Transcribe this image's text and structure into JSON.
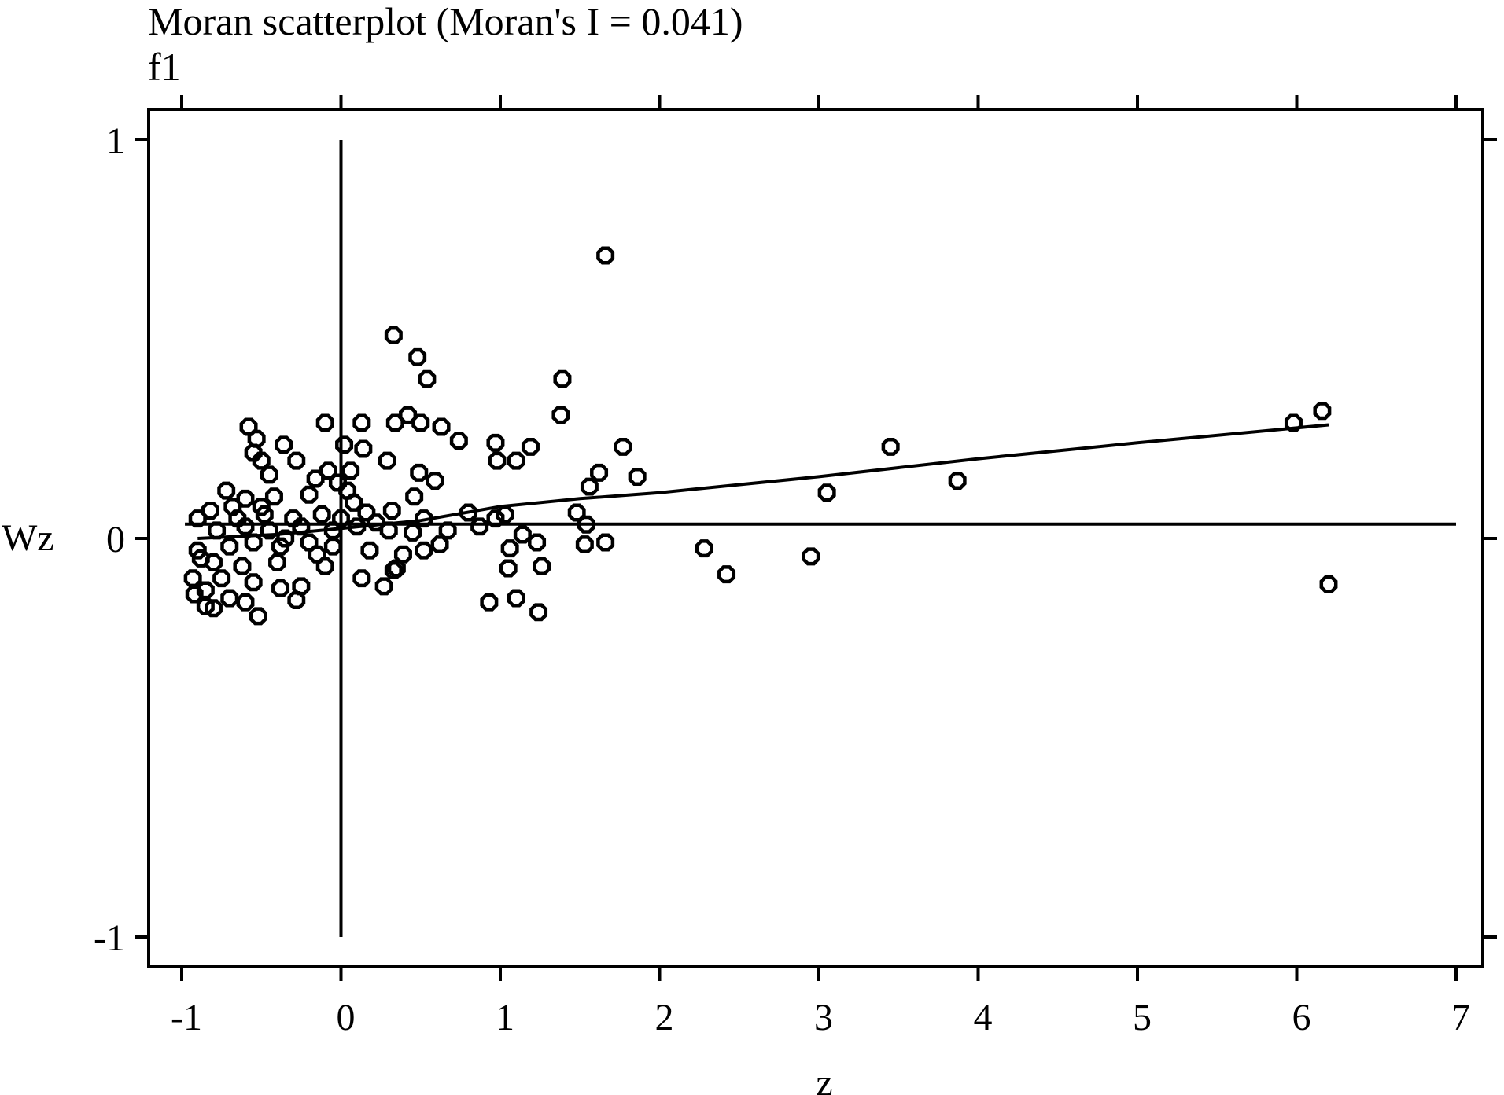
{
  "chart_data": {
    "type": "scatter",
    "title": "Moran scatterplot (Moran's I = 0.041)",
    "subtitle": "f1",
    "xlabel": "z",
    "ylabel": "Wz",
    "xlim": [
      -1,
      7
    ],
    "ylim": [
      -1,
      1
    ],
    "xticks": [
      -1,
      0,
      1,
      2,
      3,
      4,
      5,
      6,
      7
    ],
    "yticks": [
      -1,
      0,
      1
    ],
    "xtick_labels": [
      "-1",
      "0",
      "1",
      "2",
      "3",
      "4",
      "5",
      "6",
      "7"
    ],
    "ytick_labels": [
      "-1",
      "0",
      "1"
    ],
    "reference_lines": {
      "vertical_at_x": 0,
      "horizontal_at_y": 0.036
    },
    "smooth_line": [
      [
        -0.9,
        0.0
      ],
      [
        -0.4,
        0.01
      ],
      [
        0.0,
        0.025
      ],
      [
        0.5,
        0.045
      ],
      [
        1.0,
        0.08
      ],
      [
        1.5,
        0.1
      ],
      [
        2.0,
        0.115
      ],
      [
        3.0,
        0.155
      ],
      [
        4.0,
        0.2
      ],
      [
        5.0,
        0.24
      ],
      [
        6.2,
        0.285
      ]
    ],
    "points": [
      [
        1.66,
        0.71
      ],
      [
        0.33,
        0.51
      ],
      [
        0.48,
        0.455
      ],
      [
        0.54,
        0.4
      ],
      [
        1.39,
        0.4
      ],
      [
        -0.58,
        0.28
      ],
      [
        -0.1,
        0.29
      ],
      [
        0.13,
        0.29
      ],
      [
        0.34,
        0.29
      ],
      [
        0.42,
        0.31
      ],
      [
        0.5,
        0.29
      ],
      [
        0.63,
        0.28
      ],
      [
        1.38,
        0.31
      ],
      [
        -0.53,
        0.25
      ],
      [
        -0.36,
        0.235
      ],
      [
        0.02,
        0.235
      ],
      [
        0.74,
        0.245
      ],
      [
        0.97,
        0.24
      ],
      [
        1.19,
        0.23
      ],
      [
        1.77,
        0.23
      ],
      [
        -0.55,
        0.215
      ],
      [
        -0.5,
        0.195
      ],
      [
        -0.28,
        0.195
      ],
      [
        0.14,
        0.225
      ],
      [
        0.29,
        0.195
      ],
      [
        0.98,
        0.195
      ],
      [
        1.1,
        0.195
      ],
      [
        -0.45,
        0.16
      ],
      [
        -0.16,
        0.15
      ],
      [
        -0.08,
        0.17
      ],
      [
        0.06,
        0.17
      ],
      [
        0.49,
        0.165
      ],
      [
        0.59,
        0.145
      ],
      [
        1.62,
        0.165
      ],
      [
        1.86,
        0.155
      ],
      [
        1.56,
        0.13
      ],
      [
        -0.72,
        0.12
      ],
      [
        -0.6,
        0.1
      ],
      [
        -0.42,
        0.105
      ],
      [
        -0.2,
        0.11
      ],
      [
        0.04,
        0.12
      ],
      [
        0.46,
        0.105
      ],
      [
        -0.9,
        0.05
      ],
      [
        -0.82,
        0.07
      ],
      [
        -0.65,
        0.05
      ],
      [
        -0.48,
        0.06
      ],
      [
        -0.3,
        0.05
      ],
      [
        -0.12,
        0.06
      ],
      [
        0.0,
        0.05
      ],
      [
        0.16,
        0.065
      ],
      [
        0.32,
        0.07
      ],
      [
        0.52,
        0.05
      ],
      [
        0.8,
        0.065
      ],
      [
        0.97,
        0.05
      ],
      [
        1.03,
        0.06
      ],
      [
        1.48,
        0.065
      ],
      [
        1.54,
        0.035
      ],
      [
        -0.78,
        0.02
      ],
      [
        -0.6,
        0.03
      ],
      [
        -0.45,
        0.02
      ],
      [
        -0.25,
        0.03
      ],
      [
        -0.05,
        0.02
      ],
      [
        0.1,
        0.03
      ],
      [
        0.3,
        0.02
      ],
      [
        0.45,
        0.015
      ],
      [
        0.67,
        0.02
      ],
      [
        0.87,
        0.03
      ],
      [
        1.14,
        0.01
      ],
      [
        -0.9,
        -0.03
      ],
      [
        -0.7,
        -0.02
      ],
      [
        -0.55,
        -0.01
      ],
      [
        -0.38,
        -0.02
      ],
      [
        -0.2,
        -0.01
      ],
      [
        -0.05,
        -0.02
      ],
      [
        0.18,
        -0.03
      ],
      [
        0.39,
        -0.04
      ],
      [
        0.52,
        -0.03
      ],
      [
        0.62,
        -0.015
      ],
      [
        1.06,
        -0.025
      ],
      [
        1.23,
        -0.01
      ],
      [
        1.53,
        -0.015
      ],
      [
        1.66,
        -0.01
      ],
      [
        2.28,
        -0.025
      ],
      [
        2.95,
        -0.045
      ],
      [
        -0.8,
        -0.06
      ],
      [
        -0.62,
        -0.07
      ],
      [
        -0.4,
        -0.06
      ],
      [
        -0.1,
        -0.07
      ],
      [
        0.35,
        -0.075
      ],
      [
        -0.93,
        -0.1
      ],
      [
        -0.75,
        -0.1
      ],
      [
        -0.55,
        -0.11
      ],
      [
        -0.25,
        -0.12
      ],
      [
        0.13,
        -0.1
      ],
      [
        0.27,
        -0.12
      ],
      [
        0.33,
        -0.08
      ],
      [
        1.05,
        -0.075
      ],
      [
        1.26,
        -0.07
      ],
      [
        2.42,
        -0.09
      ],
      [
        -0.92,
        -0.14
      ],
      [
        -0.85,
        -0.13
      ],
      [
        -0.7,
        -0.15
      ],
      [
        -0.6,
        -0.16
      ],
      [
        -0.38,
        -0.125
      ],
      [
        -0.28,
        -0.155
      ],
      [
        0.93,
        -0.16
      ],
      [
        1.1,
        -0.15
      ],
      [
        -0.85,
        -0.17
      ],
      [
        -0.8,
        -0.175
      ],
      [
        -0.52,
        -0.195
      ],
      [
        1.24,
        -0.185
      ],
      [
        3.05,
        0.115
      ],
      [
        3.45,
        0.23
      ],
      [
        3.87,
        0.145
      ],
      [
        5.98,
        0.29
      ],
      [
        6.16,
        0.32
      ],
      [
        6.2,
        -0.115
      ],
      [
        -0.68,
        0.08
      ],
      [
        -0.35,
        0.0
      ],
      [
        -0.15,
        -0.04
      ],
      [
        0.08,
        0.09
      ],
      [
        0.22,
        0.04
      ],
      [
        -0.88,
        -0.05
      ],
      [
        -0.5,
        0.08
      ],
      [
        -0.02,
        0.14
      ]
    ]
  }
}
